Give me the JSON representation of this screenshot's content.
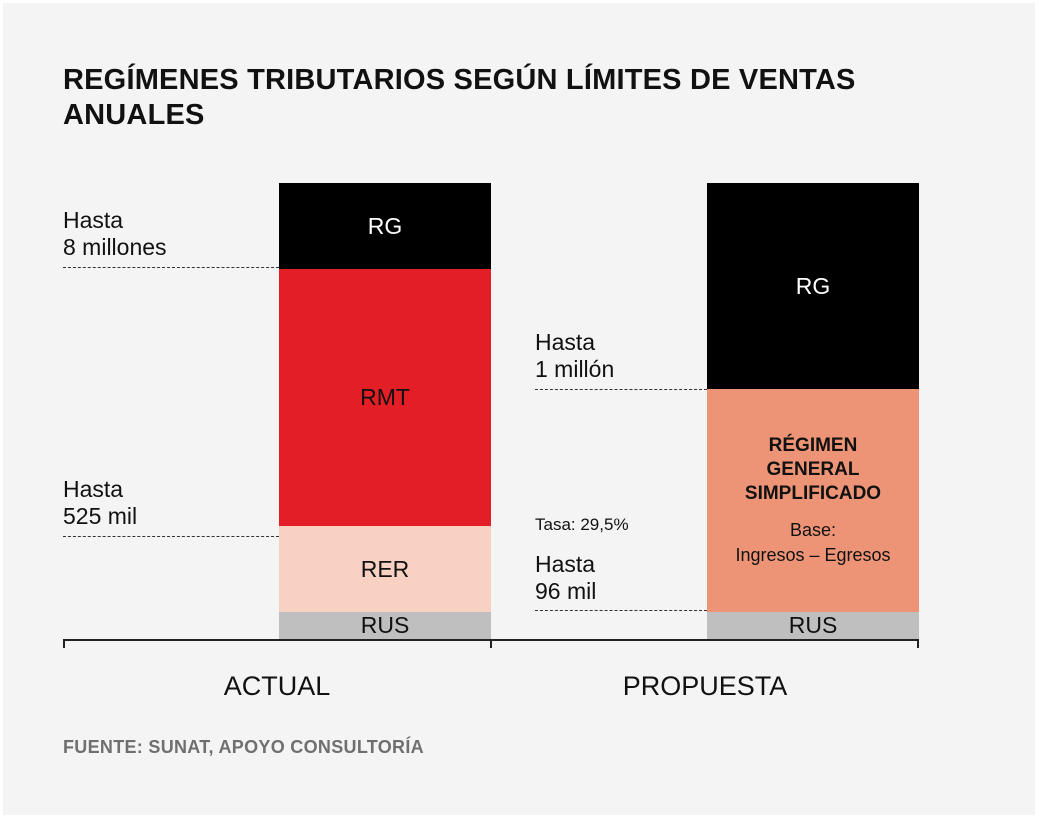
{
  "title": "REGÍMENES TRIBUTARIOS SEGÚN LÍMITES DE VENTAS ANUALES",
  "source": "FUENTE: SUNAT, APOYO CONSULTORÍA",
  "colors": {
    "rg": "#000000",
    "rmt": "#e31e26",
    "rer": "#f8d1c2",
    "rus": "#bfbfc0",
    "rgs": "#ee9476"
  },
  "chart_data": {
    "type": "bar",
    "categories": [
      "ACTUAL",
      "PROPUESTA"
    ],
    "columns": [
      {
        "name": "ACTUAL",
        "segments": [
          {
            "label": "RUS"
          },
          {
            "label": "RER"
          },
          {
            "label": "RMT"
          },
          {
            "label": "RG"
          }
        ],
        "thresholds": [
          {
            "line1": "Hasta",
            "line2": "525 mil"
          },
          {
            "line1": "Hasta",
            "line2": "8 millones"
          }
        ]
      },
      {
        "name": "PROPUESTA",
        "segments": [
          {
            "label": "RUS"
          },
          {
            "title": "RÉGIMEN GENERAL SIMPLIFICADO",
            "title_lines": [
              "RÉGIMEN",
              "GENERAL",
              "SIMPLIFICADO"
            ],
            "base_lines": [
              "Base:",
              "Ingresos – Egresos"
            ],
            "rate": "Tasa: 29,5%"
          },
          {
            "label": "RG"
          }
        ],
        "thresholds": [
          {
            "line1": "Hasta",
            "line2": "96 mil"
          },
          {
            "line1": "Hasta",
            "line2": "1 millón"
          }
        ]
      }
    ]
  }
}
